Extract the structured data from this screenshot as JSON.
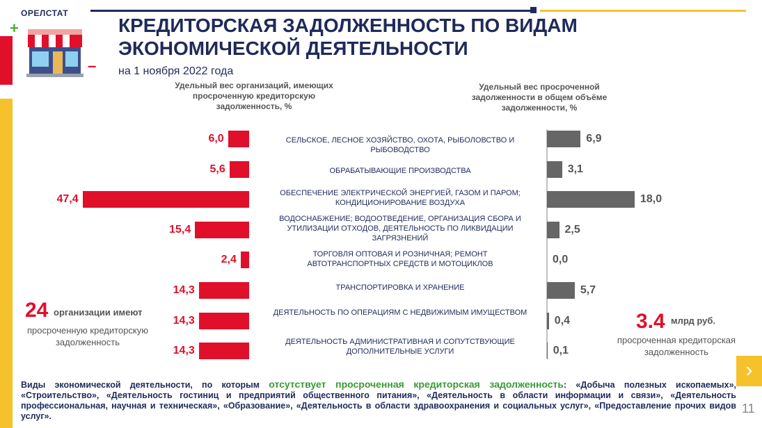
{
  "brand": "ОРЕЛСТАТ",
  "title": "КРЕДИТОРСКАЯ ЗАДОЛЖЕННОСТЬ ПО ВИДАМ ЭКОНОМИЧЕСКОЙ ДЕЯТЕЛЬНОСТИ",
  "subtitle": "на 1 ноября 2022 года",
  "plus_sign": "+",
  "minus_sign": "–",
  "left_header": "Удельный вес организаций, имеющих просроченную кредиторскую задолженность, %",
  "right_header": "Удельный вес просроченной задолженности в общем объёме задолженности, %",
  "chart_data": {
    "type": "bar",
    "categories": [
      "СЕЛЬСКОЕ, ЛЕСНОЕ ХОЗЯЙСТВО, ОХОТА, РЫБОЛОВСТВО И РЫБОВОДСТВО",
      "ОБРАБАТЫВАЮЩИЕ ПРОИЗВОДСТВА",
      "ОБЕСПЕЧЕНИЕ ЭЛЕКТРИЧЕСКОЙ ЭНЕРГИЕЙ, ГАЗОМ И ПАРОМ; КОНДИЦИОНИРОВАНИЕ ВОЗДУХА",
      "ВОДОСНАБЖЕНИЕ; ВОДООТВЕДЕНИЕ, ОРГАНИЗАЦИЯ СБОРА И УТИЛИЗАЦИИ ОТХОДОВ, ДЕЯТЕЛЬНОСТЬ ПО ЛИКВИДАЦИИ ЗАГРЯЗНЕНИЙ",
      "ТОРГОВЛЯ ОПТОВАЯ И РОЗНИЧНАЯ; РЕМОНТ АВТОТРАНСПОРТНЫХ СРЕДСТВ И МОТОЦИКЛОВ",
      "ТРАНСПОРТИРОВКА И ХРАНЕНИЕ",
      "ДЕЯТЕЛЬНОСТЬ ПО ОПЕРАЦИЯМ С НЕДВИЖИМЫМ ИМУЩЕСТВОМ",
      "ДЕЯТЕЛЬНОСТЬ АДМИНИСТРАТИВНАЯ И СОПУТСТВУЮЩИЕ ДОПОЛНИТЕЛЬНЫЕ УСЛУГИ"
    ],
    "series": [
      {
        "name": "Удельный вес организаций, имеющих просроченную кредиторскую задолженность, %",
        "values": [
          6.0,
          5.6,
          47.4,
          15.4,
          2.4,
          14.3,
          14.3,
          14.3
        ],
        "labels": [
          "6,0",
          "5,6",
          "47,4",
          "15,4",
          "2,4",
          "14,3",
          "14,3",
          "14,3"
        ]
      },
      {
        "name": "Удельный вес просроченной задолженности в общем объёме задолженности, %",
        "values": [
          6.9,
          3.1,
          18.0,
          2.5,
          0.0,
          5.7,
          0.4,
          0.1
        ],
        "labels": [
          "6,9",
          "3,1",
          "18,0",
          "2,5",
          "0,0",
          "5,7",
          "0,4",
          "0,1"
        ]
      }
    ],
    "colors": {
      "left": "#e0102a",
      "right": "#666666"
    }
  },
  "left_stat": {
    "value": "24",
    "text1": "организации имеют",
    "text2": "просроченную кредиторскую задолженность"
  },
  "right_stat": {
    "value": "3.4",
    "unit": "млрд руб.",
    "text": "просроченная кредиторская задолженность"
  },
  "footer": {
    "part1": "Виды экономической деятельности, по которым",
    "highlight": "отсутствует просроченная кредиторская задолженность",
    "part2": ": «Добыча полезных ископаемых», «Строительство», «Деятельность гостиниц и предприятий общественного питания», «Деятельность в области информации и связи», «Деятельность профессиональная, научная и техническая», «Образование», «Деятельность в области здравоохранения и социальных услуг», «Предоставление прочих видов услуг»."
  },
  "next_icon": "chevron-right-icon",
  "next_glyph": "›",
  "page_number": "11"
}
